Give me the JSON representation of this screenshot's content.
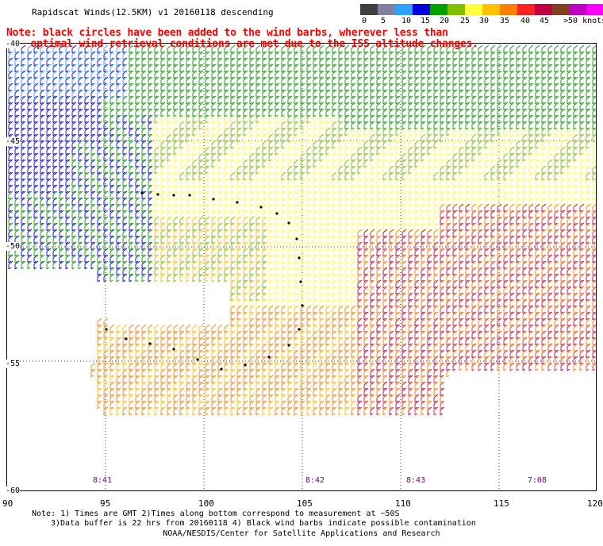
{
  "title": "Rapidscat Winds(12.5KM) v1 20160118 descending",
  "note_line1": "Note: black circles have been added to the wind barbs, wherever less than",
  "note_line2": "optimal wind retrieval conditions are met due to the ISS altitude changes.",
  "legend": {
    "colors": [
      "#404040",
      "#8080a0",
      "#30a0ff",
      "#0000e0",
      "#00a000",
      "#80c000",
      "#ffff40",
      "#ffc000",
      "#ff8000",
      "#ff2020",
      "#c00040",
      "#804020",
      "#c000c0",
      "#ff00ff",
      "#400080"
    ],
    "labels": [
      "0",
      "5",
      "10",
      "15",
      "20",
      "25",
      "30",
      "35",
      "40",
      "45",
      ">50 knots"
    ]
  },
  "lat_labels": [
    "-40",
    "-45",
    "-50",
    "-55",
    "-60"
  ],
  "lon_labels": [
    "90",
    "95",
    "100",
    "105",
    "110",
    "115",
    "120"
  ],
  "times": [
    "8:41",
    "8:42",
    "8:43",
    "7:08"
  ],
  "footnote1": "Note: 1) Times are GMT 2)Times along bottom correspond to measurement at ~50S",
  "footnote2": "3)Data buffer is 22 hrs from 20160118 4) Black wind barbs indicate possible contamination",
  "credit": "NOAA/NESDIS/Center for Satellite Applications and Research"
}
